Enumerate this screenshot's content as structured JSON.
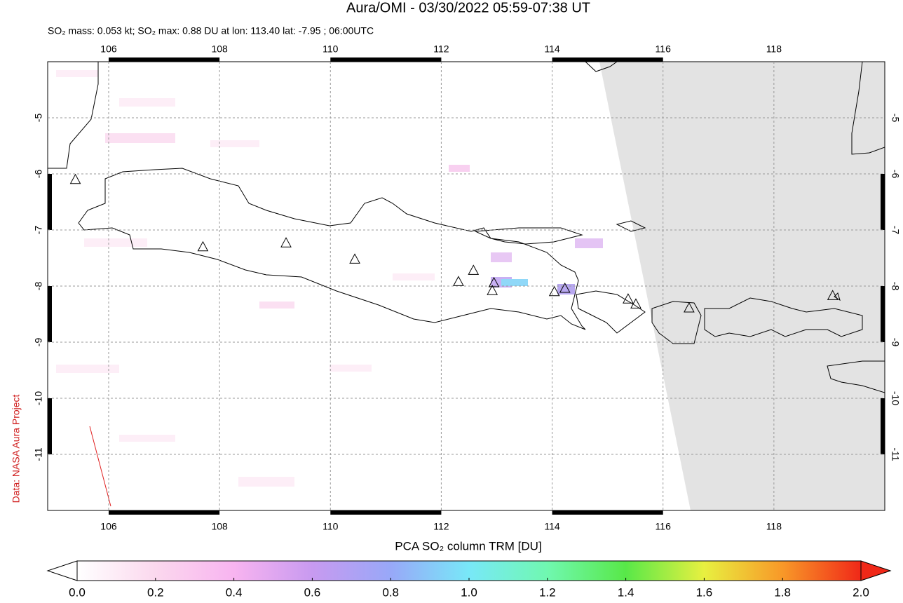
{
  "chart_data": {
    "type": "map",
    "title": "Aura/OMI - 03/30/2022 05:59-07:38 UT",
    "subtitle": "SO₂ mass: 0.053 kt; SO₂ max: 0.88 DU at lon: 113.40 lat: -7.95 ; 06:00UTC",
    "xlim": [
      104.9,
      120.0
    ],
    "ylim": [
      -4.0,
      -12.0
    ],
    "xticks": [
      106,
      108,
      110,
      112,
      114,
      116,
      118
    ],
    "yticks": [
      -5,
      -6,
      -7,
      -8,
      -9,
      -10,
      -11
    ],
    "grid": true,
    "volcanoes": {
      "lon": [
        105.4,
        107.7,
        109.2,
        110.44,
        112.31,
        112.58,
        112.95,
        112.92,
        114.04,
        114.23,
        115.37,
        115.51,
        116.47,
        119.06
      ],
      "lat": [
        -6.11,
        -7.31,
        -7.24,
        -7.53,
        -7.93,
        -7.73,
        -7.95,
        -8.09,
        -8.11,
        -8.05,
        -8.24,
        -8.33,
        -8.4,
        -8.18
      ]
    },
    "colorbar": {
      "label": "PCA SO₂ column TRM [DU]",
      "clim": [
        0.0,
        2.0
      ],
      "ticks": [
        {
          "value": 0,
          "label": "0.0"
        },
        {
          "value": 0.2,
          "label": "0.2"
        },
        {
          "value": 0.4,
          "label": "0.4"
        },
        {
          "value": 0.6,
          "label": "0.6"
        },
        {
          "value": 0.8,
          "label": "0.8"
        },
        {
          "value": 1.0,
          "label": "1.0"
        },
        {
          "value": 1.2,
          "label": "1.2"
        },
        {
          "value": 1.4,
          "label": "1.4"
        },
        {
          "value": 1.6,
          "label": "1.6"
        },
        {
          "value": 1.8,
          "label": "1.8"
        },
        {
          "value": 2.0,
          "label": "2.0"
        }
      ]
    },
    "credit": "Data: NASA Aura Project"
  }
}
